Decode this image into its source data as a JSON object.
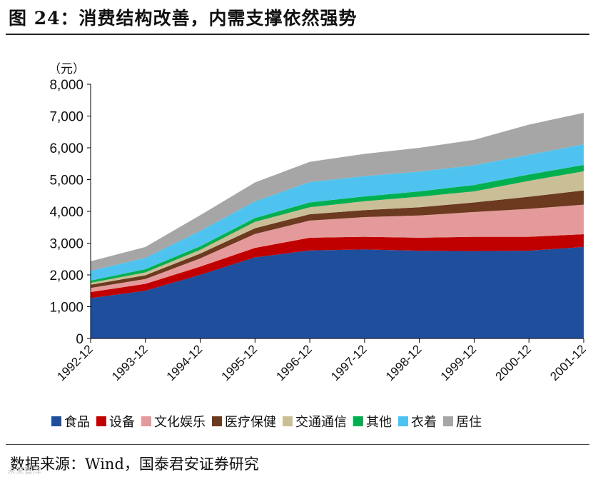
{
  "title": "图 24：消费结构改善，内需支撑依然强势",
  "source": "数据来源：Wind，国泰君安证券研究",
  "watermark": "未来智库",
  "chart_data": {
    "type": "area",
    "stacked": true,
    "unit_label": "（元）",
    "categories": [
      "1992-12",
      "1993-12",
      "1994-12",
      "1995-12",
      "1996-12",
      "1997-12",
      "1998-12",
      "1999-12",
      "2000-12",
      "2001-12"
    ],
    "ylim": [
      0,
      8000
    ],
    "yticks": [
      0,
      1000,
      2000,
      3000,
      4000,
      5000,
      6000,
      7000,
      8000
    ],
    "ytick_labels": [
      "0",
      "1,000",
      "2,000",
      "3,000",
      "4,000",
      "5,000",
      "6,000",
      "7,000",
      "8,000"
    ],
    "series": [
      {
        "name": "食品",
        "color": "#1f4e9c",
        "values": [
          1270,
          1500,
          2000,
          2550,
          2770,
          2800,
          2760,
          2750,
          2760,
          2880
        ]
      },
      {
        "name": "设备",
        "color": "#c00000",
        "values": [
          190,
          220,
          260,
          300,
          400,
          400,
          410,
          450,
          440,
          400
        ]
      },
      {
        "name": "文化娱乐",
        "color": "#e49a9a",
        "values": [
          130,
          150,
          260,
          440,
          540,
          620,
          700,
          780,
          880,
          930
        ]
      },
      {
        "name": "医疗保健",
        "color": "#6b3a1f",
        "values": [
          100,
          120,
          150,
          180,
          200,
          220,
          260,
          300,
          380,
          450
        ]
      },
      {
        "name": "交通通信",
        "color": "#c9be96",
        "values": [
          60,
          90,
          120,
          200,
          220,
          280,
          330,
          350,
          500,
          600
        ]
      },
      {
        "name": "其他",
        "color": "#00b050",
        "values": [
          70,
          100,
          110,
          120,
          150,
          150,
          170,
          200,
          200,
          200
        ]
      },
      {
        "name": "衣着",
        "color": "#4fc3ef",
        "values": [
          310,
          350,
          480,
          520,
          640,
          640,
          620,
          620,
          620,
          650
        ]
      },
      {
        "name": "居住",
        "color": "#a6a6a6",
        "values": [
          300,
          350,
          500,
          600,
          640,
          700,
          750,
          800,
          950,
          990
        ]
      }
    ]
  }
}
